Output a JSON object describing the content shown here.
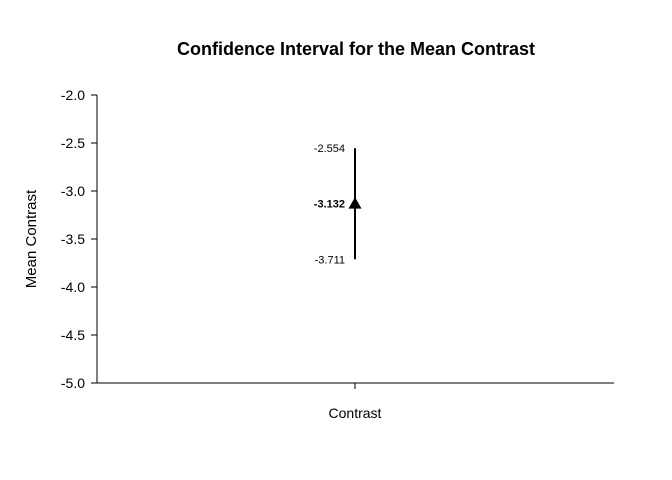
{
  "chart_data": {
    "type": "errorbar",
    "title": "Confidence Interval for the Mean Contrast",
    "xlabel": "",
    "ylabel": "Mean Contrast",
    "categories": [
      "Contrast"
    ],
    "series": [
      {
        "mean": -3.132,
        "lower": -3.711,
        "upper": -2.554,
        "mean_label": "-3.132",
        "lower_label": "-3.711",
        "upper_label": "-2.554"
      }
    ],
    "ylim": [
      -5.0,
      -2.0
    ],
    "yticks": [
      -2.0,
      -2.5,
      -3.0,
      -3.5,
      -4.0,
      -4.5,
      -5.0
    ],
    "ytick_labels": [
      "-2.0",
      "-2.5",
      "-3.0",
      "-3.5",
      "-4.0",
      "-4.5",
      "-5.0"
    ],
    "grid": false,
    "marker": "triangle",
    "color": "#000000"
  }
}
